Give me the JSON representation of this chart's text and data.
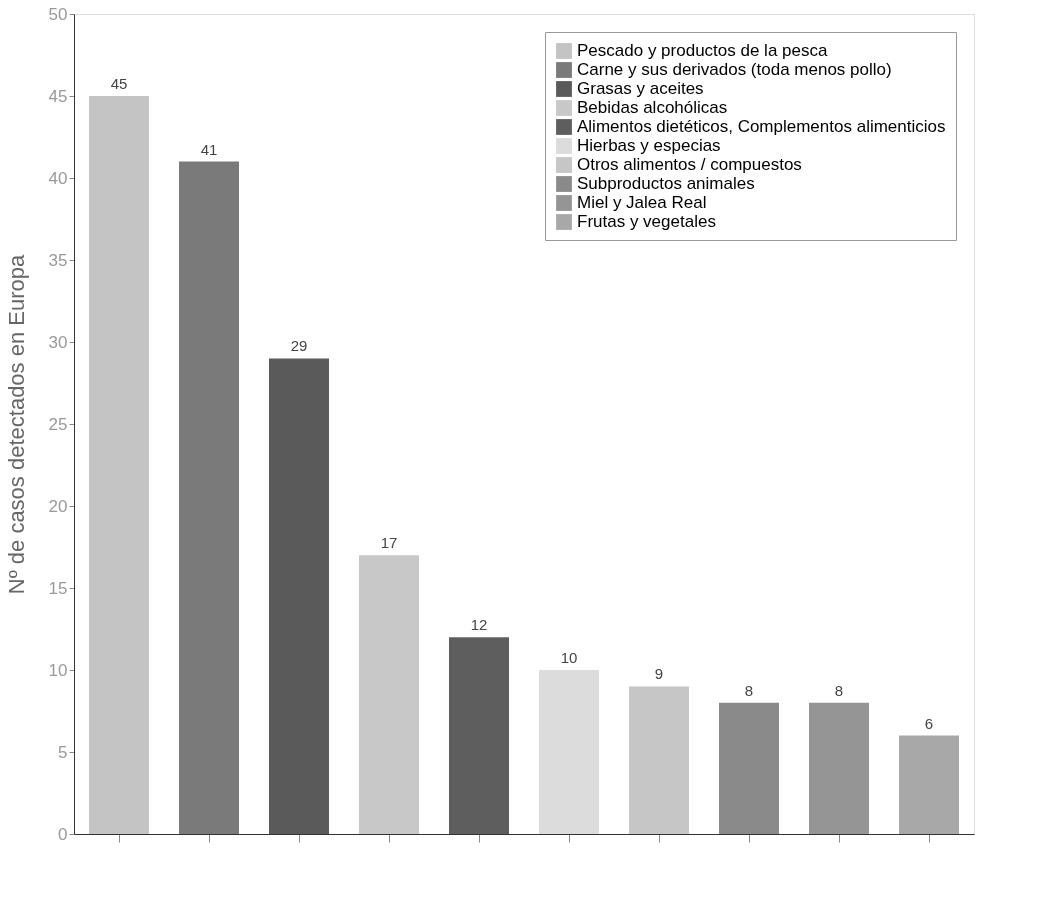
{
  "chart_data": {
    "type": "bar",
    "ylabel": "Nº de casos detectados en Europa",
    "categories": [
      null,
      null,
      null,
      null,
      null,
      null,
      null,
      null,
      null,
      null
    ],
    "series": [
      {
        "name": "Pescado y productos de la pesca",
        "color": "#c4c4c4",
        "values": [
          45,
          null,
          null,
          null,
          null,
          null,
          null,
          null,
          null,
          null
        ]
      },
      {
        "name": "Carne y sus derivados (toda menos pollo)",
        "color": "#7a7a7a",
        "values": [
          null,
          41,
          null,
          null,
          null,
          null,
          null,
          null,
          null,
          null
        ]
      },
      {
        "name": "Grasas y aceites",
        "color": "#5a5a5a",
        "values": [
          null,
          null,
          29,
          null,
          null,
          null,
          null,
          null,
          null,
          null
        ]
      },
      {
        "name": "Bebidas alcohólicas",
        "color": "#c8c8c8",
        "values": [
          null,
          null,
          null,
          17,
          null,
          null,
          null,
          null,
          null,
          null
        ]
      },
      {
        "name": "Alimentos dietéticos, Complementos alimenticios",
        "color": "#5e5e5e",
        "values": [
          null,
          null,
          null,
          null,
          12,
          null,
          null,
          null,
          null,
          null
        ]
      },
      {
        "name": "Hierbas y especias",
        "color": "#dcdcdc",
        "values": [
          null,
          null,
          null,
          null,
          null,
          10,
          null,
          null,
          null,
          null
        ]
      },
      {
        "name": "Otros alimentos / compuestos",
        "color": "#c6c6c6",
        "values": [
          null,
          null,
          null,
          null,
          null,
          null,
          9,
          null,
          null,
          null
        ]
      },
      {
        "name": "Subproductos animales",
        "color": "#8a8a8a",
        "values": [
          null,
          null,
          null,
          null,
          null,
          null,
          null,
          8,
          null,
          null
        ]
      },
      {
        "name": "Miel y Jalea Real",
        "color": "#959595",
        "values": [
          null,
          null,
          null,
          null,
          null,
          null,
          null,
          null,
          8,
          null
        ]
      },
      {
        "name": "Frutas y vegetales",
        "color": "#a8a8a8",
        "values": [
          null,
          null,
          null,
          null,
          null,
          null,
          null,
          null,
          null,
          6
        ]
      }
    ],
    "ylim": [
      0,
      50
    ],
    "yticks": [
      0,
      5,
      10,
      15,
      20,
      25,
      30,
      35,
      40,
      45,
      50
    ],
    "data_labels": true,
    "grid": false,
    "legend": "top right"
  }
}
